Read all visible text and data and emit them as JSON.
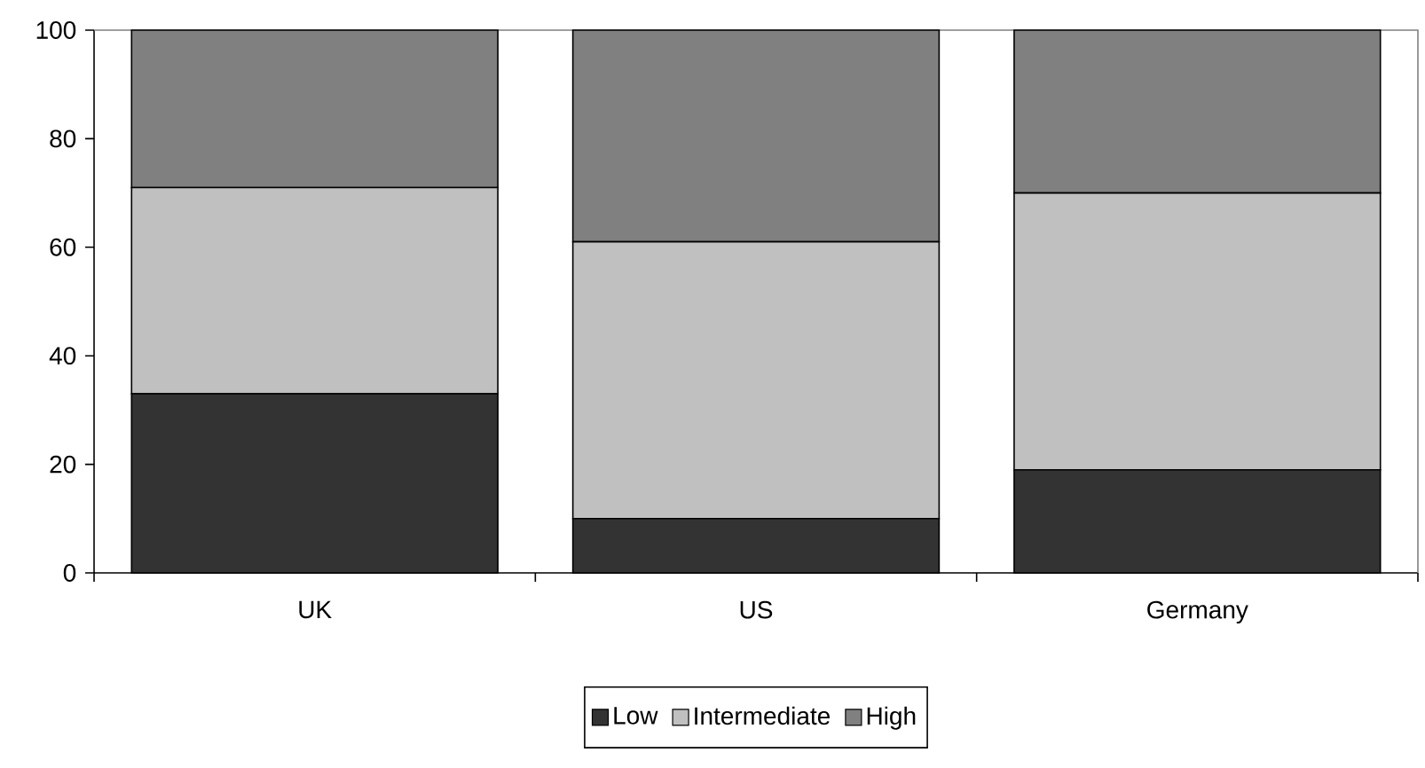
{
  "chart_data": {
    "type": "bar",
    "stacked": true,
    "categories": [
      "UK",
      "US",
      "Germany"
    ],
    "series": [
      {
        "name": "Low",
        "color": "#333333",
        "values": [
          33,
          10,
          19
        ]
      },
      {
        "name": "Intermediate",
        "color": "#c0c0c0",
        "values": [
          38,
          51,
          51
        ]
      },
      {
        "name": "High",
        "color": "#808080",
        "values": [
          29,
          39,
          30
        ]
      }
    ],
    "ylim": [
      0,
      100
    ],
    "yticks": [
      0,
      20,
      40,
      60,
      80,
      100
    ],
    "legend": "bottom"
  }
}
